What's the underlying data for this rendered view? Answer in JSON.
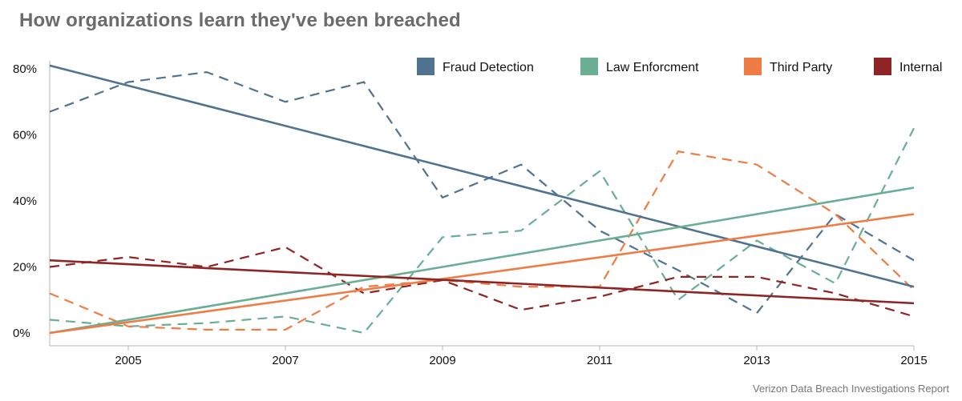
{
  "title": "How organizations learn they've been breached",
  "source": "Verizon Data Breach Investigations Report",
  "chart_data": {
    "type": "line",
    "x": [
      2004,
      2005,
      2006,
      2007,
      2008,
      2009,
      2010,
      2011,
      2012,
      2013,
      2014,
      2015
    ],
    "xticks": [
      "2005",
      "2007",
      "2009",
      "2011",
      "2013",
      "2015"
    ],
    "xtick_values": [
      2005,
      2007,
      2009,
      2011,
      2013,
      2015
    ],
    "yticks": [
      "0%",
      "20%",
      "40%",
      "60%",
      "80%"
    ],
    "ytick_values": [
      0,
      20,
      40,
      60,
      80
    ],
    "xlim": [
      2004,
      2015
    ],
    "ylim": [
      0,
      80
    ],
    "grid": false,
    "legend_position": "top",
    "series": [
      {
        "name": "Fraud Detection",
        "color": "#4f7390",
        "values": [
          67,
          76,
          79,
          70,
          76,
          41,
          51,
          31,
          19,
          6,
          36,
          22
        ],
        "trend": [
          81,
          14
        ]
      },
      {
        "name": "Law Enforcment",
        "color": "#6aaf93",
        "values": [
          4,
          2,
          3,
          5,
          0,
          29,
          31,
          49,
          10,
          28,
          15,
          62
        ],
        "trend": [
          0,
          44
        ]
      },
      {
        "name": "Third Party",
        "color": "#ef7c45",
        "values": [
          12,
          2,
          1,
          1,
          14,
          16,
          14,
          14,
          55,
          51,
          36,
          13
        ],
        "trend": [
          0,
          36
        ]
      },
      {
        "name": "Internal",
        "color": "#8f2424",
        "values": [
          20,
          23,
          20,
          26,
          12,
          16,
          7,
          11,
          17,
          17,
          12,
          5
        ],
        "trend": [
          22,
          9
        ]
      }
    ]
  }
}
